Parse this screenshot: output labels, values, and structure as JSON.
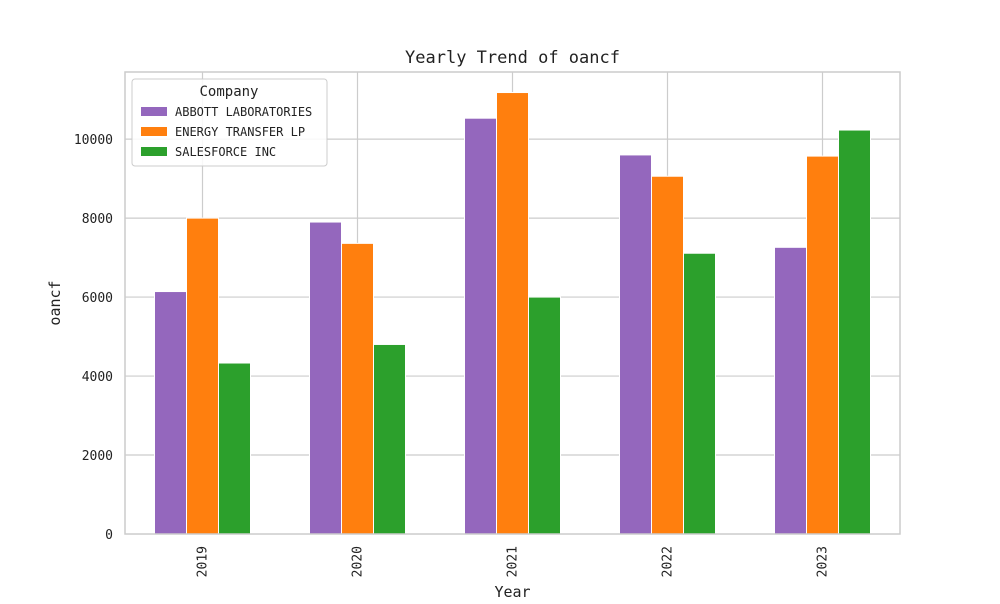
{
  "chart_data": {
    "type": "bar",
    "title": "Yearly Trend of oancf",
    "xlabel": "Year",
    "ylabel": "oancf",
    "categories": [
      "2019",
      "2020",
      "2021",
      "2022",
      "2023"
    ],
    "ylim": [
      0,
      11700
    ],
    "yticks": [
      0,
      2000,
      4000,
      6000,
      8000,
      10000
    ],
    "grid": true,
    "legend": {
      "title": "Company",
      "position": "top-left"
    },
    "series": [
      {
        "name": "ABBOTT LABORATORIES",
        "color": "#9467bd",
        "values": [
          6140,
          7900,
          10530,
          9600,
          7260
        ]
      },
      {
        "name": "ENERGY TRANSFER LP",
        "color": "#ff7f0e",
        "values": [
          8000,
          7360,
          11180,
          9060,
          9570
        ]
      },
      {
        "name": "SALESFORCE INC",
        "color": "#2ca02c",
        "values": [
          4330,
          4800,
          6000,
          7110,
          10230
        ]
      }
    ]
  }
}
